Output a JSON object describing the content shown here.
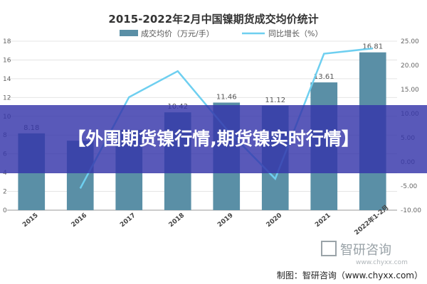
{
  "chart_data": {
    "type": "bar",
    "title": "2015-2022年2月中国镍期货成交均价统计",
    "categories": [
      "2015",
      "2016",
      "2017",
      "2018",
      "2019",
      "2020",
      "2021",
      "2022年1-2月"
    ],
    "series": [
      {
        "name": "成交均价（万元/手）",
        "type": "bar",
        "axis": "left",
        "color": "#5a8fa6",
        "values": [
          8.18,
          7.4,
          8.55,
          10.42,
          11.46,
          11.12,
          13.61,
          16.81
        ],
        "data_labels": [
          "8.18",
          "",
          "",
          "10.42",
          "11.46",
          "11.12",
          "13.61",
          "16.81"
        ]
      },
      {
        "name": "同比增长（%）",
        "type": "line",
        "axis": "right",
        "color": "#6ecff0",
        "values": [
          null,
          -5.5,
          13.4,
          18.8,
          6.8,
          -3.5,
          22.4,
          23.5
        ]
      }
    ],
    "y_left": {
      "min": 0,
      "max": 18,
      "ticks": [
        "0",
        "2",
        "4",
        "6",
        "8",
        "10",
        "12",
        "14",
        "16",
        "18"
      ]
    },
    "y_right": {
      "min": -10,
      "max": 25,
      "ticks": [
        "-10.00",
        "-5.00",
        "0.00",
        "5.00",
        "10.00",
        "15.00",
        "20.00",
        "25.00"
      ]
    },
    "legend_position": "top"
  },
  "source": "制图：智研咨询（www.chyxx.com）",
  "watermark": {
    "brand": "智研咨询",
    "url": "www.chyxx.com"
  },
  "overlay": {
    "text": "【外围期货镍行情,期货镍实时行情】"
  }
}
